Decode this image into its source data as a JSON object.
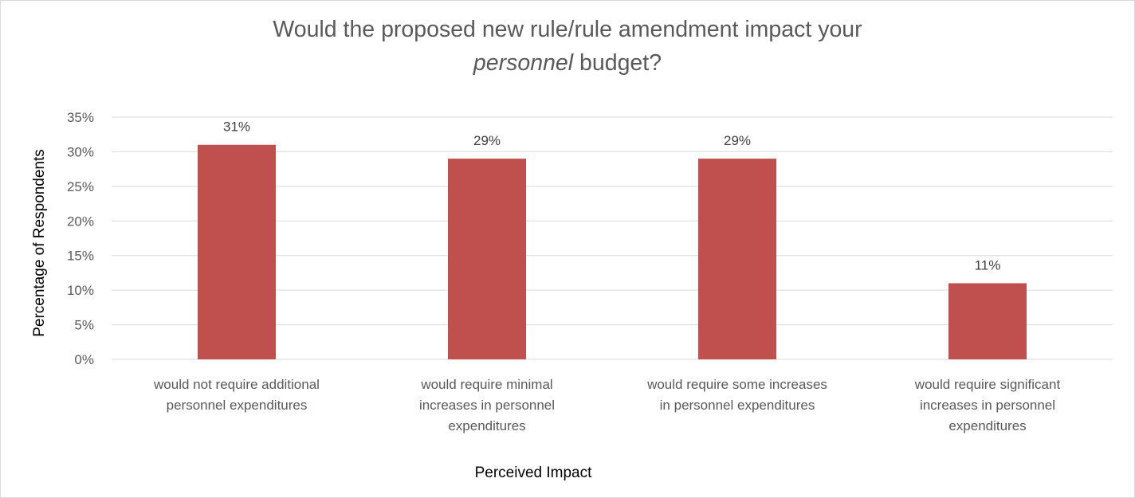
{
  "chart_data": {
    "type": "bar",
    "title_line1": "Would the proposed new rule/rule amendment impact your",
    "title_line2_italic": "personnel",
    "title_line2_rest": " budget?",
    "xlabel": "Perceived Impact",
    "ylabel": "Percentage of Respondents",
    "ylim": [
      0,
      35
    ],
    "y_ticks": [
      {
        "value": 0,
        "label": "0%"
      },
      {
        "value": 5,
        "label": "5%"
      },
      {
        "value": 10,
        "label": "10%"
      },
      {
        "value": 15,
        "label": "15%"
      },
      {
        "value": 20,
        "label": "20%"
      },
      {
        "value": 25,
        "label": "25%"
      },
      {
        "value": 30,
        "label": "30%"
      },
      {
        "value": 35,
        "label": "35%"
      }
    ],
    "categories": [
      [
        "would not require additional",
        "personnel expenditures"
      ],
      [
        "would require minimal",
        "increases in personnel",
        "expenditures"
      ],
      [
        "would require some increases",
        "in personnel expenditures"
      ],
      [
        "would require significant",
        "increases in personnel",
        "expenditures"
      ]
    ],
    "values": [
      31,
      29,
      29,
      11
    ],
    "data_labels": [
      "31%",
      "29%",
      "29%",
      "11%"
    ],
    "bar_color": "#c0504d",
    "grid": true,
    "legend": "none"
  }
}
